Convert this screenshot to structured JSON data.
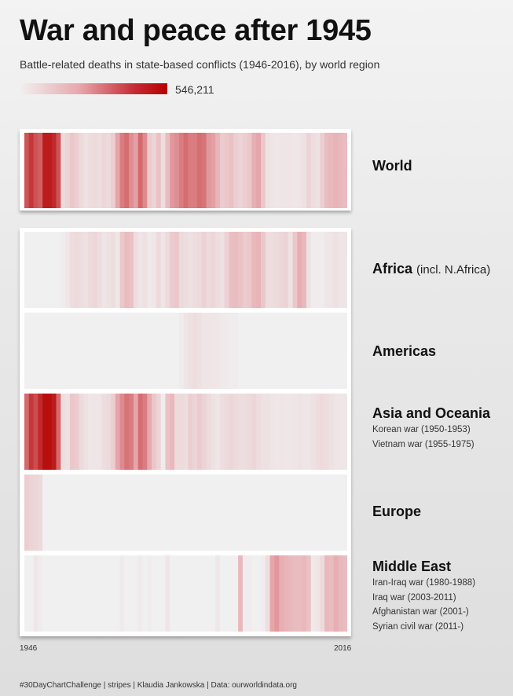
{
  "header": {
    "title": "War and peace after 1945",
    "subtitle": "Battle-related deaths in state-based conflicts (1946-2016), by world region"
  },
  "legend": {
    "max_value_label": "546,211",
    "color_low": "#f0f0f0",
    "color_high": "#b40000"
  },
  "axis": {
    "start_label": "1946",
    "end_label": "2016"
  },
  "footer": "#30DayChartChallenge  |  stripes  |  Klaudia Jankowska | Data: ourworldindata.org",
  "labels": {
    "world": "World",
    "africa": "Africa",
    "africa_note": "(incl. N.Africa)",
    "americas": "Americas",
    "asia": "Asia and Oceania",
    "europe": "Europe",
    "middle_east": "Middle East"
  },
  "annotations": {
    "asia": [
      "Korean war (1950-1953)",
      "Vietnam war (1955-1975)"
    ],
    "middle_east": [
      "Iran-Iraq war (1980-1988)",
      "Iraq war (2003-2011)",
      "Afghanistan war (2001-)",
      "Syrian civil war (2011-)"
    ]
  },
  "chart_data": {
    "type": "heatmap",
    "title": "War and peace after 1945",
    "subtitle": "Battle-related deaths in state-based conflicts (1946-2016), by world region",
    "x_start": 1946,
    "x_end": 2016,
    "scale_max": 546211,
    "note": "Values are estimated shares of the color-scale maximum (0 = no deaths, 1 = 546,211), one per year 1946-2016.",
    "series": [
      {
        "name": "World",
        "values": [
          0.7,
          0.8,
          0.7,
          0.65,
          0.9,
          0.9,
          0.85,
          0.7,
          0.12,
          0.15,
          0.22,
          0.18,
          0.12,
          0.08,
          0.1,
          0.12,
          0.1,
          0.14,
          0.12,
          0.18,
          0.4,
          0.55,
          0.6,
          0.48,
          0.42,
          0.62,
          0.5,
          0.2,
          0.15,
          0.25,
          0.1,
          0.28,
          0.45,
          0.48,
          0.55,
          0.6,
          0.55,
          0.55,
          0.6,
          0.58,
          0.45,
          0.42,
          0.32,
          0.2,
          0.22,
          0.25,
          0.18,
          0.15,
          0.18,
          0.22,
          0.35,
          0.4,
          0.22,
          0.08,
          0.06,
          0.05,
          0.06,
          0.06,
          0.06,
          0.05,
          0.06,
          0.08,
          0.15,
          0.1,
          0.08,
          0.18,
          0.28,
          0.3,
          0.32,
          0.3,
          0.28
        ]
      },
      {
        "name": "Africa",
        "values": [
          0.0,
          0.0,
          0.0,
          0.0,
          0.0,
          0.0,
          0.0,
          0.0,
          0.02,
          0.05,
          0.1,
          0.12,
          0.1,
          0.08,
          0.12,
          0.14,
          0.1,
          0.06,
          0.08,
          0.1,
          0.05,
          0.22,
          0.28,
          0.25,
          0.1,
          0.06,
          0.08,
          0.04,
          0.05,
          0.12,
          0.06,
          0.12,
          0.2,
          0.22,
          0.12,
          0.1,
          0.08,
          0.1,
          0.12,
          0.16,
          0.12,
          0.14,
          0.1,
          0.08,
          0.16,
          0.26,
          0.28,
          0.24,
          0.2,
          0.22,
          0.3,
          0.32,
          0.22,
          0.1,
          0.1,
          0.12,
          0.14,
          0.15,
          0.08,
          0.22,
          0.35,
          0.3,
          0.08,
          0.02,
          0.02,
          0.02,
          0.05,
          0.06,
          0.08,
          0.06,
          0.06
        ]
      },
      {
        "name": "Americas",
        "values": [
          0.0,
          0.0,
          0.0,
          0.0,
          0.0,
          0.0,
          0.0,
          0.0,
          0.0,
          0.0,
          0.0,
          0.0,
          0.0,
          0.0,
          0.0,
          0.0,
          0.0,
          0.0,
          0.0,
          0.0,
          0.0,
          0.0,
          0.0,
          0.0,
          0.0,
          0.0,
          0.0,
          0.0,
          0.0,
          0.0,
          0.0,
          0.0,
          0.0,
          0.0,
          0.02,
          0.06,
          0.08,
          0.1,
          0.08,
          0.06,
          0.06,
          0.06,
          0.05,
          0.04,
          0.03,
          0.02,
          0.02,
          0.0,
          0.0,
          0.0,
          0.0,
          0.0,
          0.0,
          0.0,
          0.0,
          0.0,
          0.0,
          0.0,
          0.0,
          0.0,
          0.0,
          0.0,
          0.0,
          0.0,
          0.0,
          0.0,
          0.0,
          0.0,
          0.0,
          0.0,
          0.0
        ]
      },
      {
        "name": "Asia and Oceania",
        "values": [
          0.62,
          0.8,
          0.72,
          0.85,
          0.95,
          0.95,
          0.9,
          0.62,
          0.1,
          0.08,
          0.22,
          0.2,
          0.12,
          0.08,
          0.05,
          0.06,
          0.06,
          0.1,
          0.12,
          0.18,
          0.4,
          0.5,
          0.58,
          0.55,
          0.4,
          0.6,
          0.55,
          0.38,
          0.22,
          0.15,
          0.02,
          0.25,
          0.3,
          0.12,
          0.12,
          0.1,
          0.18,
          0.15,
          0.2,
          0.15,
          0.12,
          0.08,
          0.06,
          0.1,
          0.12,
          0.14,
          0.12,
          0.1,
          0.1,
          0.12,
          0.14,
          0.1,
          0.08,
          0.08,
          0.06,
          0.05,
          0.06,
          0.05,
          0.05,
          0.06,
          0.07,
          0.06,
          0.06,
          0.08,
          0.1,
          0.12,
          0.1,
          0.08,
          0.06,
          0.06,
          0.05
        ]
      },
      {
        "name": "Europe",
        "values": [
          0.18,
          0.15,
          0.14,
          0.12,
          0.0,
          0.0,
          0.0,
          0.0,
          0.0,
          0.0,
          0.0,
          0.0,
          0.0,
          0.0,
          0.0,
          0.0,
          0.0,
          0.0,
          0.0,
          0.0,
          0.0,
          0.0,
          0.0,
          0.0,
          0.0,
          0.0,
          0.0,
          0.0,
          0.0,
          0.0,
          0.0,
          0.0,
          0.0,
          0.0,
          0.0,
          0.0,
          0.0,
          0.0,
          0.0,
          0.0,
          0.0,
          0.0,
          0.0,
          0.0,
          0.0,
          0.0,
          0.0,
          0.0,
          0.0,
          0.0,
          0.0,
          0.0,
          0.0,
          0.0,
          0.0,
          0.0,
          0.0,
          0.0,
          0.0,
          0.0,
          0.0,
          0.0,
          0.0,
          0.0,
          0.0,
          0.0,
          0.0,
          0.0,
          0.0,
          0.0,
          0.0
        ]
      },
      {
        "name": "Middle East",
        "values": [
          0.0,
          0.0,
          0.05,
          0.02,
          0.0,
          0.0,
          0.0,
          0.0,
          0.0,
          0.0,
          0.0,
          0.0,
          0.0,
          0.0,
          0.0,
          0.0,
          0.0,
          0.0,
          0.0,
          0.0,
          0.0,
          0.03,
          0.0,
          0.0,
          0.0,
          0.03,
          0.0,
          0.02,
          0.0,
          0.0,
          0.0,
          0.06,
          0.0,
          0.0,
          0.0,
          0.0,
          0.0,
          0.0,
          0.0,
          0.0,
          0.0,
          0.0,
          0.05,
          0.0,
          0.0,
          0.0,
          0.0,
          0.3,
          0.02,
          0.02,
          0.0,
          0.0,
          0.02,
          0.1,
          0.4,
          0.45,
          0.35,
          0.32,
          0.3,
          0.28,
          0.28,
          0.3,
          0.25,
          0.04,
          0.06,
          0.12,
          0.3,
          0.28,
          0.35,
          0.3,
          0.28
        ]
      }
    ]
  }
}
